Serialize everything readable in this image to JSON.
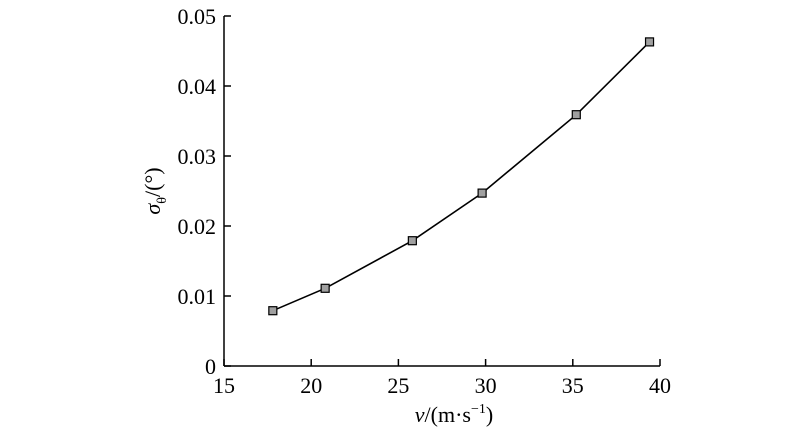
{
  "chart_data": {
    "type": "line",
    "x": [
      17.8,
      20.8,
      25.8,
      29.8,
      35.2,
      39.4
    ],
    "series": [
      {
        "values": [
          0.0079,
          0.0111,
          0.0179,
          0.0247,
          0.0359,
          0.0463
        ]
      }
    ],
    "xlim": [
      15,
      40
    ],
    "ylim": [
      0,
      0.05
    ],
    "xticks": [
      "15",
      "20",
      "25",
      "30",
      "35",
      "40"
    ],
    "yticks": [
      "0",
      "0.01",
      "0.02",
      "0.03",
      "0.04",
      "0.05"
    ],
    "xlabel": {
      "var": "v",
      "unit_open": "/(m·s",
      "unit_sup": "−1",
      "unit_close": ")"
    },
    "ylabel": {
      "var": "σ",
      "sub": "θ",
      "unit": "/(°)"
    },
    "grid": false,
    "marker": "square",
    "line_color": "#000000",
    "marker_fill": "#a0a0a0"
  }
}
